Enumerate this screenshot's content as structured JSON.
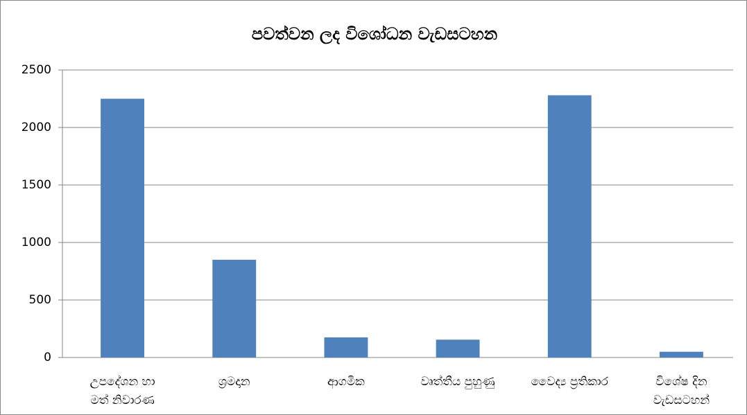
{
  "chart_data": {
    "type": "bar",
    "title": "පවත්වන ලද විශෝධන වැඩසටහන",
    "categories": [
      [
        "උපදේශන හා",
        "මත් නිවාරණ"
      ],
      "ශ්‍රමදාන",
      "ආගමික",
      "වෘත්තීය පුහුණු",
      "වෛද්‍ය ප්‍රතිකාර",
      [
        "විශේෂ දින",
        "වැඩසටහන්"
      ]
    ],
    "values": [
      2250,
      850,
      175,
      155,
      2280,
      50
    ],
    "color": "#4f81bd",
    "ylim": [
      0,
      2500
    ],
    "yticks": [
      0,
      500,
      1000,
      1500,
      2000,
      2500
    ],
    "grid": true
  }
}
